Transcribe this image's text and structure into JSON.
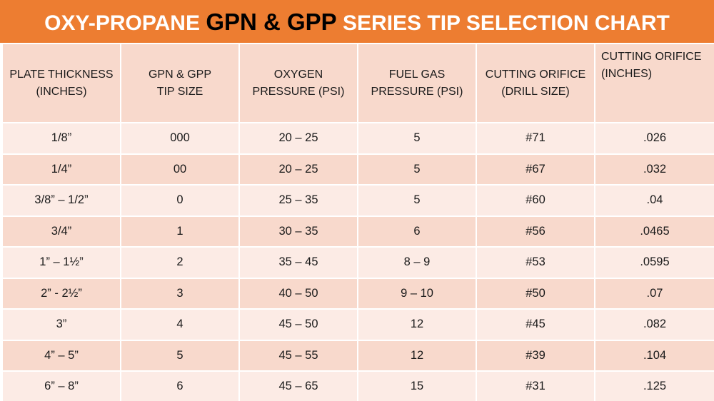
{
  "title": {
    "part1": "OXY-PROPANE ",
    "part2": "GPN & GPP",
    "part3": " SERIES TIP SELECTION CHART"
  },
  "table": {
    "headers": [
      [
        "PLATE THICKNESS",
        "(INCHES)"
      ],
      [
        "GPN & GPP",
        "TIP SIZE"
      ],
      [
        "OXYGEN",
        "PRESSURE (PSI)"
      ],
      [
        "FUEL GAS",
        "PRESSURE (PSI)"
      ],
      [
        "CUTTING ORIFICE",
        "(DRILL SIZE)"
      ],
      [
        "CUTTING ORIFICE",
        "(INCHES)"
      ]
    ],
    "rows": [
      [
        "1/8”",
        "000",
        "20 – 25",
        "5",
        "#71",
        ".026"
      ],
      [
        "1/4”",
        "00",
        "20 – 25",
        "5",
        "#67",
        ".032"
      ],
      [
        "3/8” – 1/2”",
        "0",
        "25 – 35",
        "5",
        "#60",
        ".04"
      ],
      [
        "3/4”",
        "1",
        "30 – 35",
        "6",
        "#56",
        ".0465"
      ],
      [
        "1” – 1½”",
        "2",
        "35 – 45",
        "8 – 9",
        "#53",
        ".0595"
      ],
      [
        "2” - 2½”",
        "3",
        "40 – 50",
        "9 – 10",
        "#50",
        ".07"
      ],
      [
        "3”",
        "4",
        "45 – 50",
        "12",
        "#45",
        ".082"
      ],
      [
        "4” – 5”",
        "5",
        "45 – 55",
        "12",
        "#39",
        ".104"
      ],
      [
        "6” – 8”",
        "6",
        "45 – 65",
        "15",
        "#31",
        ".125"
      ]
    ]
  },
  "colors": {
    "title_bar": "#ed7d31",
    "header_fill": "#f8d9cc",
    "row_light": "#fcebe5",
    "row_dark": "#f8d9cc"
  }
}
